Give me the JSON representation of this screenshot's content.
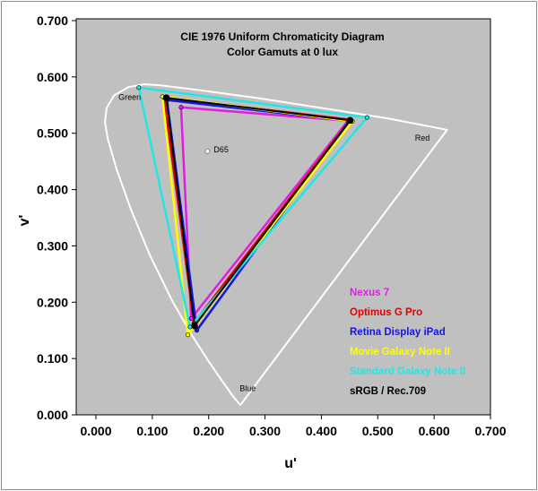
{
  "chart_data": {
    "type": "scatter",
    "title": "CIE 1976 Uniform Chromaticity Diagram",
    "subtitle": "Color Gamuts at 0 lux",
    "xlabel": "u'",
    "ylabel": "v'",
    "xlim": [
      0,
      0.7
    ],
    "ylim": [
      0,
      0.7
    ],
    "xticks": [
      "0.000",
      "0.100",
      "0.200",
      "0.300",
      "0.400",
      "0.500",
      "0.600",
      "0.700"
    ],
    "yticks": [
      "0.000",
      "0.100",
      "0.200",
      "0.300",
      "0.400",
      "0.500",
      "0.600",
      "0.700"
    ],
    "plot_background": "#c0c0c0",
    "grid": false,
    "spectral_locus": [
      [
        0.256,
        0.017
      ],
      [
        0.241,
        0.036
      ],
      [
        0.224,
        0.06
      ],
      [
        0.2,
        0.095
      ],
      [
        0.171,
        0.14
      ],
      [
        0.135,
        0.203
      ],
      [
        0.095,
        0.285
      ],
      [
        0.062,
        0.365
      ],
      [
        0.037,
        0.435
      ],
      [
        0.021,
        0.49
      ],
      [
        0.016,
        0.52
      ],
      [
        0.019,
        0.545
      ],
      [
        0.032,
        0.567
      ],
      [
        0.058,
        0.582
      ],
      [
        0.085,
        0.587
      ],
      [
        0.115,
        0.585
      ],
      [
        0.18,
        0.577
      ],
      [
        0.29,
        0.562
      ],
      [
        0.4,
        0.545
      ],
      [
        0.52,
        0.526
      ],
      [
        0.623,
        0.506
      ],
      [
        0.256,
        0.017
      ]
    ],
    "annotations": [
      {
        "text": "Green",
        "u": 0.04,
        "v": 0.559
      },
      {
        "text": "Red",
        "u": 0.566,
        "v": 0.487
      },
      {
        "text": "Blue",
        "u": 0.255,
        "v": 0.042
      },
      {
        "text": "D65",
        "u": 0.209,
        "v": 0.466
      }
    ],
    "white_point": {
      "u": 0.198,
      "v": 0.468
    },
    "series": [
      {
        "name": "Nexus 7",
        "color": "#e01ee0",
        "points": [
          [
            0.151,
            0.546
          ],
          [
            0.447,
            0.522
          ],
          [
            0.169,
            0.171
          ]
        ]
      },
      {
        "name": "Optimus G Pro",
        "color": "#e00000",
        "points": [
          [
            0.121,
            0.563
          ],
          [
            0.451,
            0.524
          ],
          [
            0.174,
            0.163
          ]
        ]
      },
      {
        "name": "Retina Display iPad",
        "color": "#1414e6",
        "points": [
          [
            0.126,
            0.559
          ],
          [
            0.45,
            0.522
          ],
          [
            0.179,
            0.15
          ]
        ]
      },
      {
        "name": "Movie Galaxy Note II",
        "color": "#ffff00",
        "points": [
          [
            0.118,
            0.565
          ],
          [
            0.455,
            0.521
          ],
          [
            0.163,
            0.142
          ]
        ]
      },
      {
        "name": "Standard Galaxy Note II",
        "color": "#22e6e6",
        "points": [
          [
            0.076,
            0.581
          ],
          [
            0.481,
            0.528
          ],
          [
            0.167,
            0.156
          ]
        ]
      },
      {
        "name": "sRGB / Rec.709",
        "color": "#000000",
        "points": [
          [
            0.125,
            0.563
          ],
          [
            0.451,
            0.523
          ],
          [
            0.175,
            0.158
          ]
        ]
      }
    ]
  }
}
